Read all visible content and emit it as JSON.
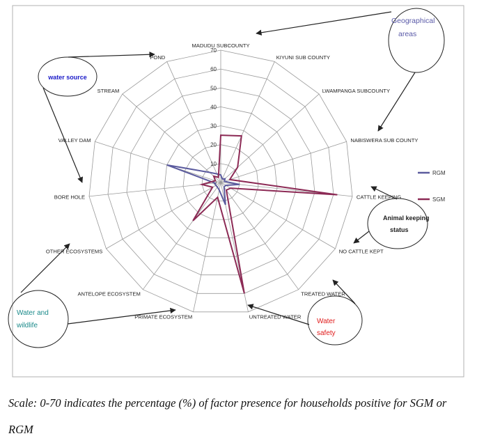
{
  "chart_data": {
    "type": "radar",
    "rlim": [
      0,
      70
    ],
    "ticks": [
      0,
      10,
      20,
      30,
      40,
      50,
      60,
      70
    ],
    "tick_labels": [
      "0",
      "10",
      "20",
      "30",
      "40",
      "50",
      "60",
      "70"
    ],
    "categories": [
      "MADUDU SUBCOUNTY",
      "KIYUNI SUB COUNTY",
      "LWAMPANGA SUBCOUNTY",
      "NABISWERA SUB COUNTY",
      "CATTLE KEEPING",
      "NO CATTLE KEPT",
      "TREATED WATER",
      "UNTREATED WATER",
      "PRIMATE ECOSYSTEM",
      "ANTELOPE ECOSYSTEM",
      "OTHER ECOSYSTEMS",
      "BORE HOLE",
      "VALLEY DAM",
      "STREAM",
      "POND"
    ],
    "series": [
      {
        "name": "RGM",
        "color": "#5b5b9e",
        "values": [
          4,
          2,
          3,
          2,
          10,
          3,
          3,
          12,
          4,
          3,
          3,
          3,
          30,
          8,
          5
        ]
      },
      {
        "name": "SGM",
        "color": "#8c2a55",
        "values": [
          25,
          27,
          12,
          5,
          62,
          6,
          5,
          60,
          8,
          25,
          5,
          10,
          3,
          5,
          3
        ]
      }
    ],
    "legend_position": "right",
    "grid": true
  },
  "annotations": {
    "geographical": "Geographical areas",
    "water_source": "water source",
    "animal_keeping": "Animal keeping status",
    "water_wildlife": "Water and wildlife",
    "water_safety": "Water safety"
  },
  "caption": "Scale: 0-70 indicates the percentage (%) of factor presence for households positive for SGM or RGM"
}
